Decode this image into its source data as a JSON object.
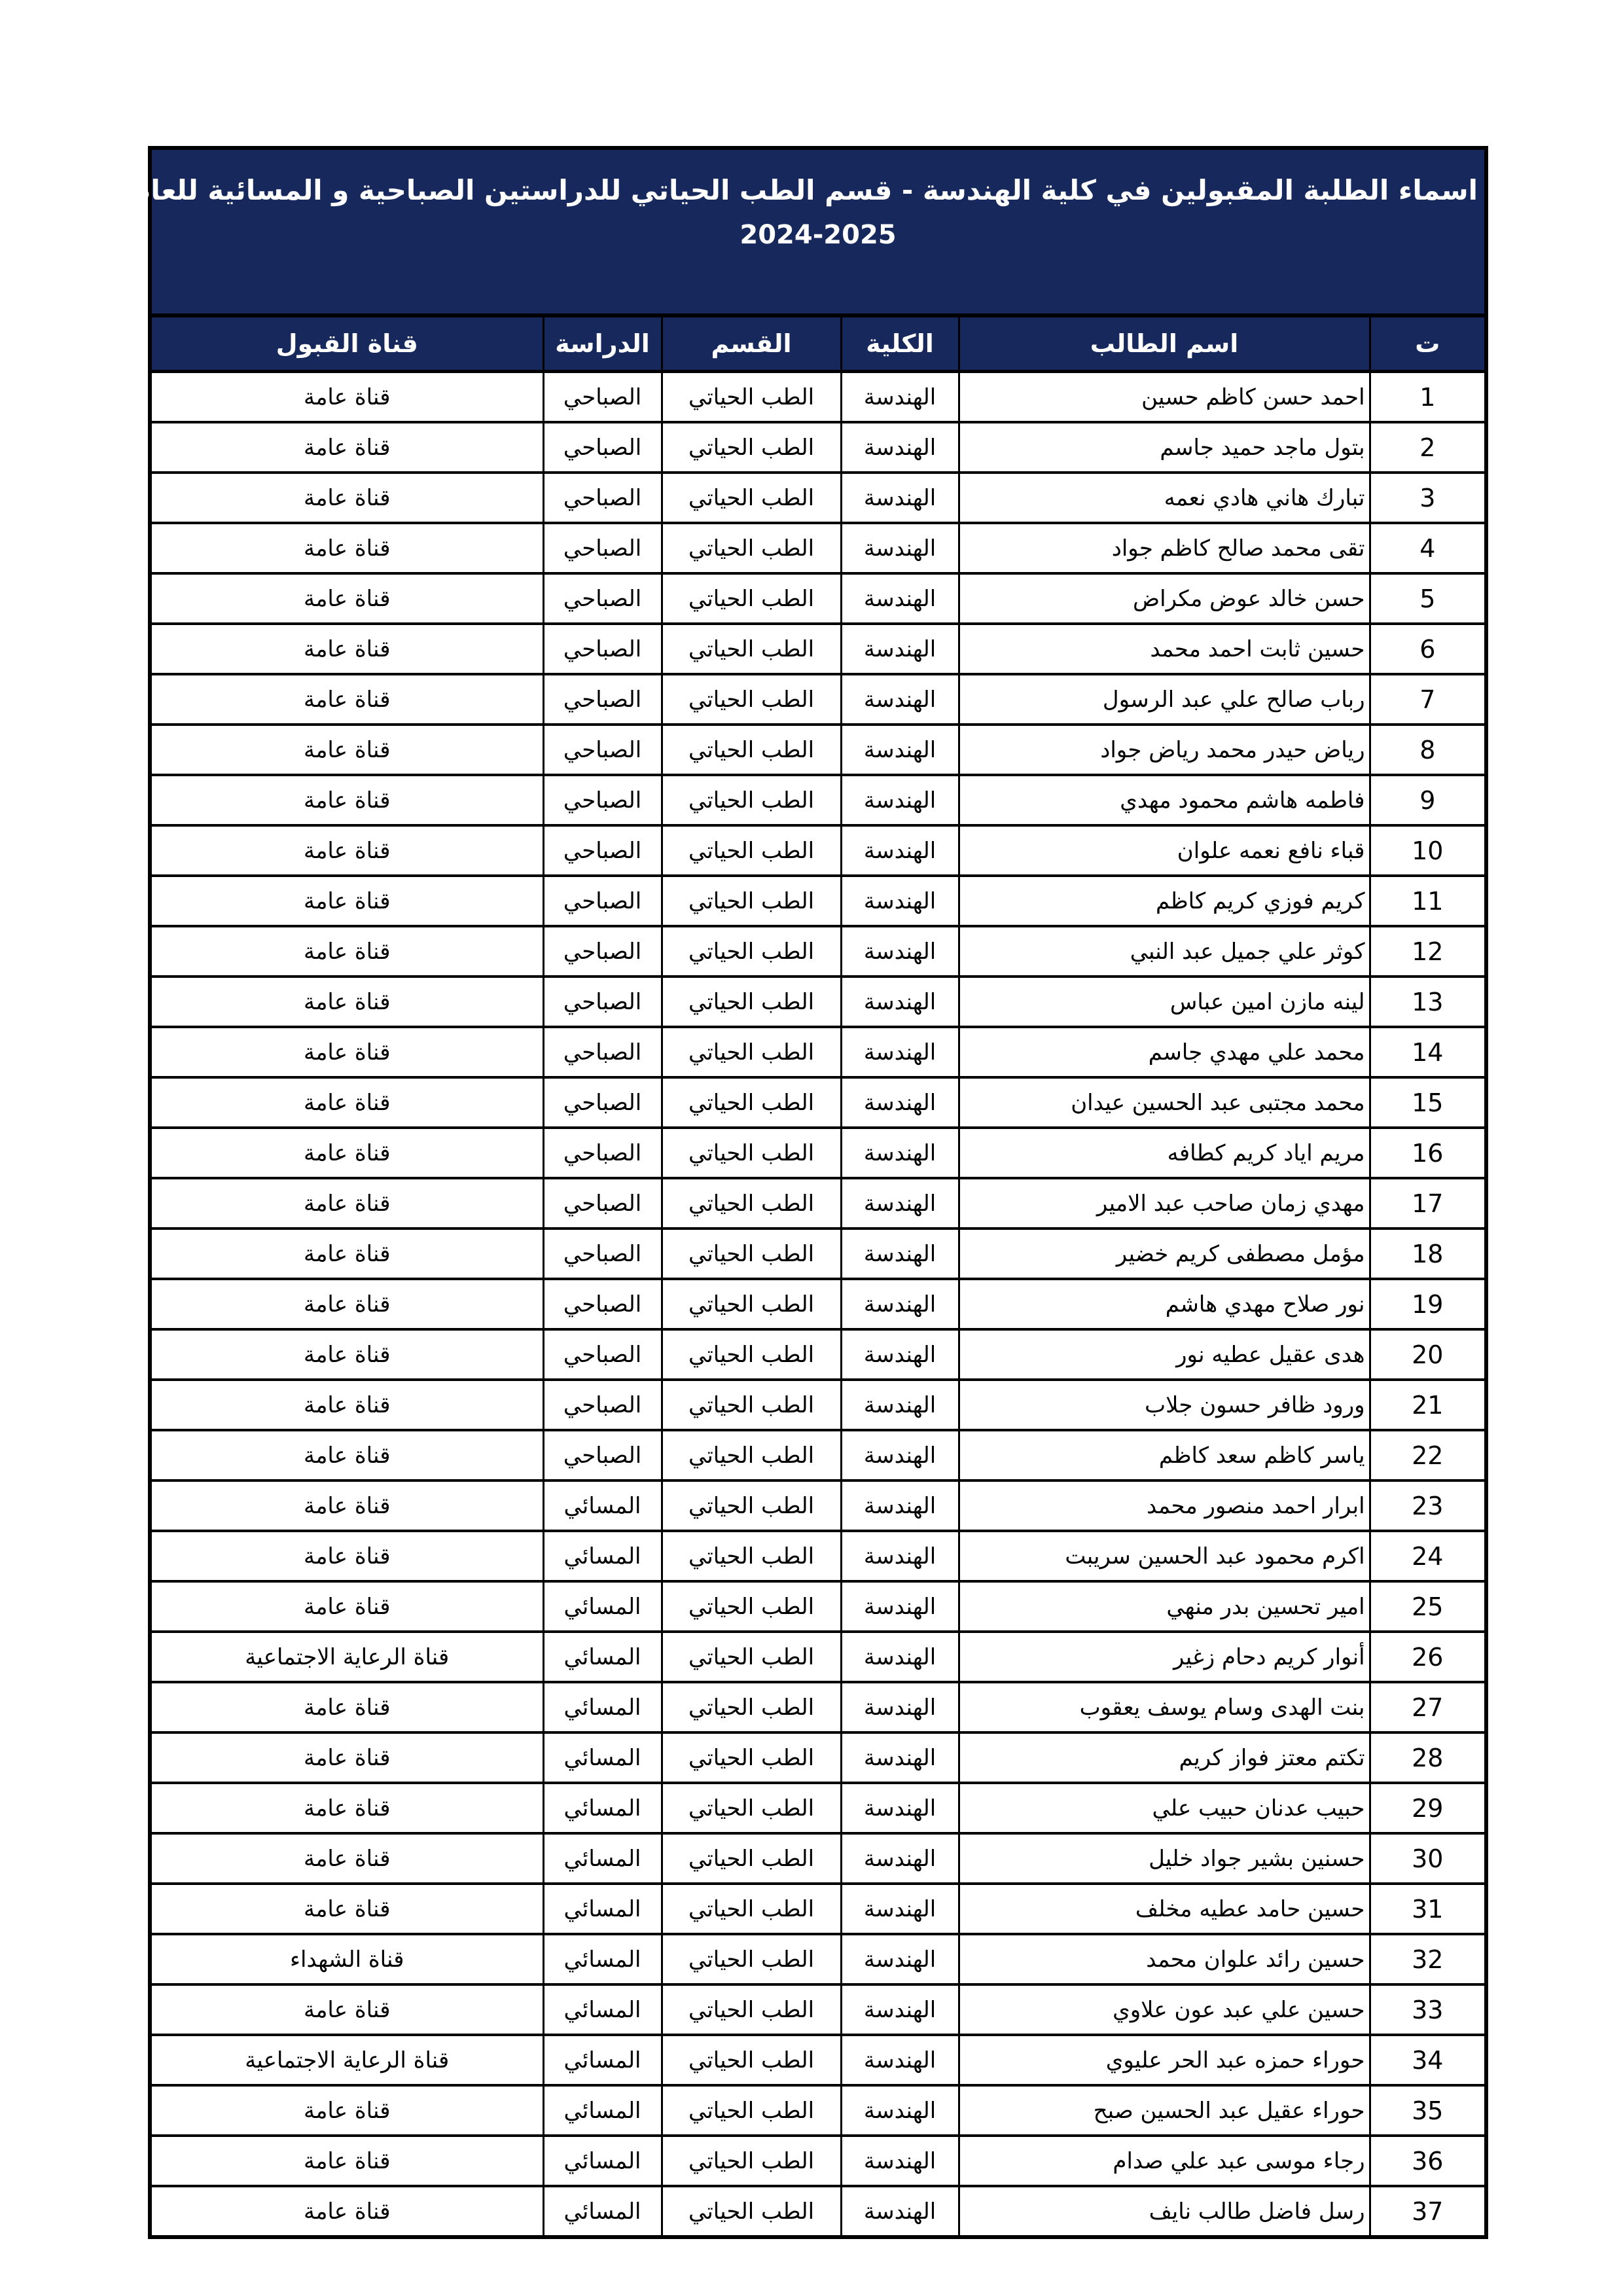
{
  "table": {
    "title_line1": "اسماء الطلبة المقبولين في كلية الهندسة - قسم الطب الحياتي للدراستين الصباحية و المسائية للعام الدراسي",
    "title_line2": "2024-2025",
    "accent_color": "#17295c",
    "columns": [
      "ت",
      "اسم الطالب",
      "الكلية",
      "القسم",
      "الدراسة",
      "قناة القبول"
    ],
    "rows": [
      {
        "n": "1",
        "name": "احمد حسن كاظم حسين",
        "college": "الهندسة",
        "department": "الطب الحياتي",
        "study": "الصباحي",
        "channel": "قناة عامة"
      },
      {
        "n": "2",
        "name": "بتول ماجد حميد جاسم",
        "college": "الهندسة",
        "department": "الطب الحياتي",
        "study": "الصباحي",
        "channel": "قناة عامة"
      },
      {
        "n": "3",
        "name": "تبارك هاني هادي نعمه",
        "college": "الهندسة",
        "department": "الطب الحياتي",
        "study": "الصباحي",
        "channel": "قناة عامة"
      },
      {
        "n": "4",
        "name": "تقى محمد صالح كاظم جواد",
        "college": "الهندسة",
        "department": "الطب الحياتي",
        "study": "الصباحي",
        "channel": "قناة عامة"
      },
      {
        "n": "5",
        "name": "حسن خالد عوض مكراض",
        "college": "الهندسة",
        "department": "الطب الحياتي",
        "study": "الصباحي",
        "channel": "قناة عامة"
      },
      {
        "n": "6",
        "name": "حسين ثابت احمد محمد",
        "college": "الهندسة",
        "department": "الطب الحياتي",
        "study": "الصباحي",
        "channel": "قناة عامة"
      },
      {
        "n": "7",
        "name": "رباب صالح علي عبد الرسول",
        "college": "الهندسة",
        "department": "الطب الحياتي",
        "study": "الصباحي",
        "channel": "قناة عامة"
      },
      {
        "n": "8",
        "name": "رياض حيدر محمد رياض جواد",
        "college": "الهندسة",
        "department": "الطب الحياتي",
        "study": "الصباحي",
        "channel": "قناة عامة"
      },
      {
        "n": "9",
        "name": "فاطمه هاشم محمود مهدي",
        "college": "الهندسة",
        "department": "الطب الحياتي",
        "study": "الصباحي",
        "channel": "قناة عامة"
      },
      {
        "n": "10",
        "name": "قباء نافع نعمه علوان",
        "college": "الهندسة",
        "department": "الطب الحياتي",
        "study": "الصباحي",
        "channel": "قناة عامة"
      },
      {
        "n": "11",
        "name": "كريم فوزي كريم كاظم",
        "college": "الهندسة",
        "department": "الطب الحياتي",
        "study": "الصباحي",
        "channel": "قناة عامة"
      },
      {
        "n": "12",
        "name": "كوثر علي جميل عبد النبي",
        "college": "الهندسة",
        "department": "الطب الحياتي",
        "study": "الصباحي",
        "channel": "قناة عامة"
      },
      {
        "n": "13",
        "name": "لينه مازن امين عباس",
        "college": "الهندسة",
        "department": "الطب الحياتي",
        "study": "الصباحي",
        "channel": "قناة عامة"
      },
      {
        "n": "14",
        "name": "محمد علي مهدي جاسم",
        "college": "الهندسة",
        "department": "الطب الحياتي",
        "study": "الصباحي",
        "channel": "قناة عامة"
      },
      {
        "n": "15",
        "name": "محمد مجتبى عبد الحسين عيدان",
        "college": "الهندسة",
        "department": "الطب الحياتي",
        "study": "الصباحي",
        "channel": "قناة عامة"
      },
      {
        "n": "16",
        "name": "مريم اياد كريم كطافه",
        "college": "الهندسة",
        "department": "الطب الحياتي",
        "study": "الصباحي",
        "channel": "قناة عامة"
      },
      {
        "n": "17",
        "name": "مهدي زمان صاحب عبد الامير",
        "college": "الهندسة",
        "department": "الطب الحياتي",
        "study": "الصباحي",
        "channel": "قناة عامة"
      },
      {
        "n": "18",
        "name": "مؤمل مصطفى كريم خضير",
        "college": "الهندسة",
        "department": "الطب الحياتي",
        "study": "الصباحي",
        "channel": "قناة عامة"
      },
      {
        "n": "19",
        "name": "نور صلاح مهدي هاشم",
        "college": "الهندسة",
        "department": "الطب الحياتي",
        "study": "الصباحي",
        "channel": "قناة عامة"
      },
      {
        "n": "20",
        "name": "هدى عقيل عطيه نور",
        "college": "الهندسة",
        "department": "الطب الحياتي",
        "study": "الصباحي",
        "channel": "قناة عامة"
      },
      {
        "n": "21",
        "name": "ورود ظافر حسون جلاب",
        "college": "الهندسة",
        "department": "الطب الحياتي",
        "study": "الصباحي",
        "channel": "قناة عامة"
      },
      {
        "n": "22",
        "name": "ياسر كاظم سعد كاظم",
        "college": "الهندسة",
        "department": "الطب الحياتي",
        "study": "الصباحي",
        "channel": "قناة عامة"
      },
      {
        "n": "23",
        "name": "ابرار احمد منصور محمد",
        "college": "الهندسة",
        "department": "الطب الحياتي",
        "study": "المسائي",
        "channel": "قناة عامة"
      },
      {
        "n": "24",
        "name": "اكرم محمود عبد الحسين سريبت",
        "college": "الهندسة",
        "department": "الطب الحياتي",
        "study": "المسائي",
        "channel": "قناة عامة"
      },
      {
        "n": "25",
        "name": "امير تحسين بدر منهي",
        "college": "الهندسة",
        "department": "الطب الحياتي",
        "study": "المسائي",
        "channel": "قناة عامة"
      },
      {
        "n": "26",
        "name": "أنوار كريم دحام زغير",
        "college": "الهندسة",
        "department": "الطب الحياتي",
        "study": "المسائي",
        "channel": "قناة الرعاية الاجتماعية"
      },
      {
        "n": "27",
        "name": "بنت الهدى وسام يوسف يعقوب",
        "college": "الهندسة",
        "department": "الطب الحياتي",
        "study": "المسائي",
        "channel": "قناة عامة"
      },
      {
        "n": "28",
        "name": "تكتم معتز فواز كريم",
        "college": "الهندسة",
        "department": "الطب الحياتي",
        "study": "المسائي",
        "channel": "قناة عامة"
      },
      {
        "n": "29",
        "name": "حبيب عدنان حبيب علي",
        "college": "الهندسة",
        "department": "الطب الحياتي",
        "study": "المسائي",
        "channel": "قناة عامة"
      },
      {
        "n": "30",
        "name": "حسنين بشير جواد خليل",
        "college": "الهندسة",
        "department": "الطب الحياتي",
        "study": "المسائي",
        "channel": "قناة عامة"
      },
      {
        "n": "31",
        "name": "حسين حامد عطيه مخلف",
        "college": "الهندسة",
        "department": "الطب الحياتي",
        "study": "المسائي",
        "channel": "قناة عامة"
      },
      {
        "n": "32",
        "name": "حسين رائد علوان محمد",
        "college": "الهندسة",
        "department": "الطب الحياتي",
        "study": "المسائي",
        "channel": "قناة الشهداء"
      },
      {
        "n": "33",
        "name": "حسين علي عبد عون علاوي",
        "college": "الهندسة",
        "department": "الطب الحياتي",
        "study": "المسائي",
        "channel": "قناة عامة"
      },
      {
        "n": "34",
        "name": "حوراء حمزه عبد الحر عليوي",
        "college": "الهندسة",
        "department": "الطب الحياتي",
        "study": "المسائي",
        "channel": "قناة الرعاية الاجتماعية"
      },
      {
        "n": "35",
        "name": "حوراء عقيل عبد الحسين صبح",
        "college": "الهندسة",
        "department": "الطب الحياتي",
        "study": "المسائي",
        "channel": "قناة عامة"
      },
      {
        "n": "36",
        "name": "رجاء موسى عبد علي صدام",
        "college": "الهندسة",
        "department": "الطب الحياتي",
        "study": "المسائي",
        "channel": "قناة عامة"
      },
      {
        "n": "37",
        "name": "رسل فاضل طالب نايف",
        "college": "الهندسة",
        "department": "الطب الحياتي",
        "study": "المسائي",
        "channel": "قناة عامة"
      }
    ]
  }
}
